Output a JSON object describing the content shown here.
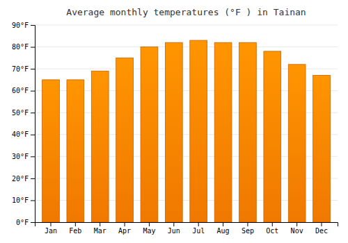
{
  "chart_data": {
    "type": "bar",
    "title": "Average monthly temperatures (°F ) in Tainan",
    "categories": [
      "Jan",
      "Feb",
      "Mar",
      "Apr",
      "May",
      "Jun",
      "Jul",
      "Aug",
      "Sep",
      "Oct",
      "Nov",
      "Dec"
    ],
    "values": [
      65,
      65,
      69,
      75,
      80,
      82,
      83,
      82,
      82,
      78,
      72,
      67
    ],
    "color": "#F07800",
    "ylim": [
      0,
      90
    ],
    "yticks": [
      {
        "value": 0,
        "label": "0°F"
      },
      {
        "value": 10,
        "label": "10°F"
      },
      {
        "value": 20,
        "label": "20°F"
      },
      {
        "value": 30,
        "label": "30°F"
      },
      {
        "value": 40,
        "label": "40°F"
      },
      {
        "value": 50,
        "label": "50°F"
      },
      {
        "value": 60,
        "label": "60°F"
      },
      {
        "value": 70,
        "label": "70°F"
      },
      {
        "value": 80,
        "label": "80°F"
      },
      {
        "value": 90,
        "label": "90°F"
      }
    ],
    "grid": true
  }
}
